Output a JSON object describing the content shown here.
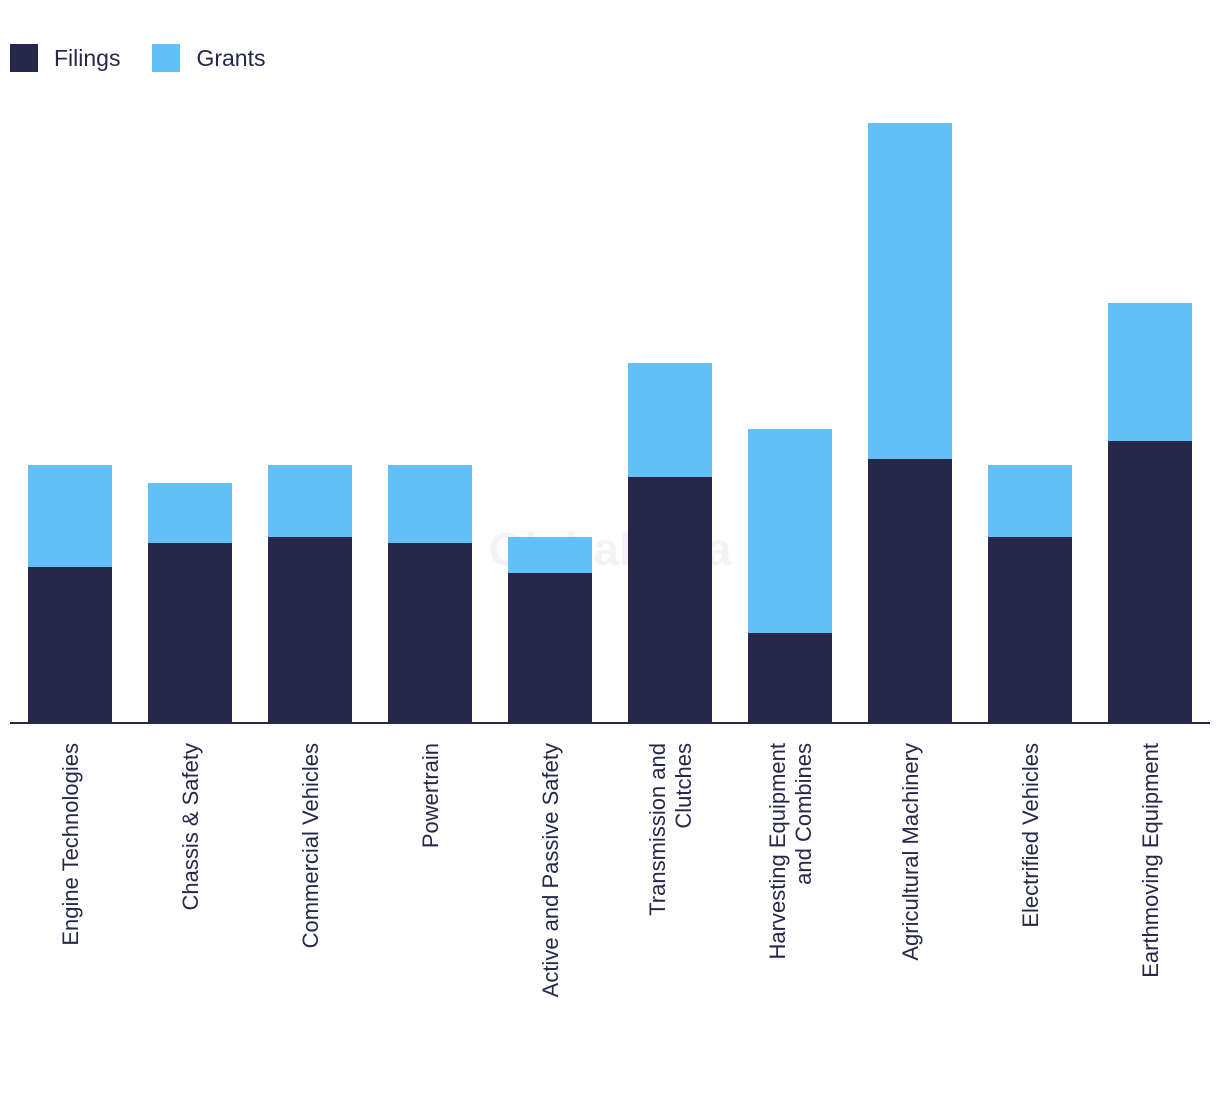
{
  "legend": {
    "filings_label": "Filings",
    "grants_label": "Grants",
    "filings_color": "#26284a",
    "grants_color": "#62c0f8"
  },
  "watermark": "GlobalData",
  "chart_data": {
    "type": "bar",
    "stacked": true,
    "title": "",
    "xlabel": "",
    "ylabel": "",
    "ylim": [
      0,
      100
    ],
    "categories": [
      "Engine Technologies",
      "Chassis & Safety",
      "Commercial Vehicles",
      "Powertrain",
      "Active and Passive Safety",
      "Transmission and Clutches",
      "Harvesting Equipment and Combines",
      "Agricultural Machinery",
      "Electrified Vehicles",
      "Earthmoving Equipment"
    ],
    "category_lines": [
      [
        "Engine Technologies"
      ],
      [
        "Chassis & Safety"
      ],
      [
        "Commercial Vehicles"
      ],
      [
        "Powertrain"
      ],
      [
        "Active and Passive Safety"
      ],
      [
        "Transmission and",
        "Clutches"
      ],
      [
        "Harvesting Equipment",
        "and Combines"
      ],
      [
        "Agricultural Machinery"
      ],
      [
        "Electrified Vehicles"
      ],
      [
        "Earthmoving Equipment"
      ]
    ],
    "series": [
      {
        "name": "Filings",
        "values": [
          26,
          30,
          31,
          30,
          25,
          41,
          15,
          44,
          31,
          47
        ]
      },
      {
        "name": "Grants",
        "values": [
          17,
          10,
          12,
          13,
          6,
          19,
          34,
          56,
          12,
          23
        ]
      }
    ]
  }
}
